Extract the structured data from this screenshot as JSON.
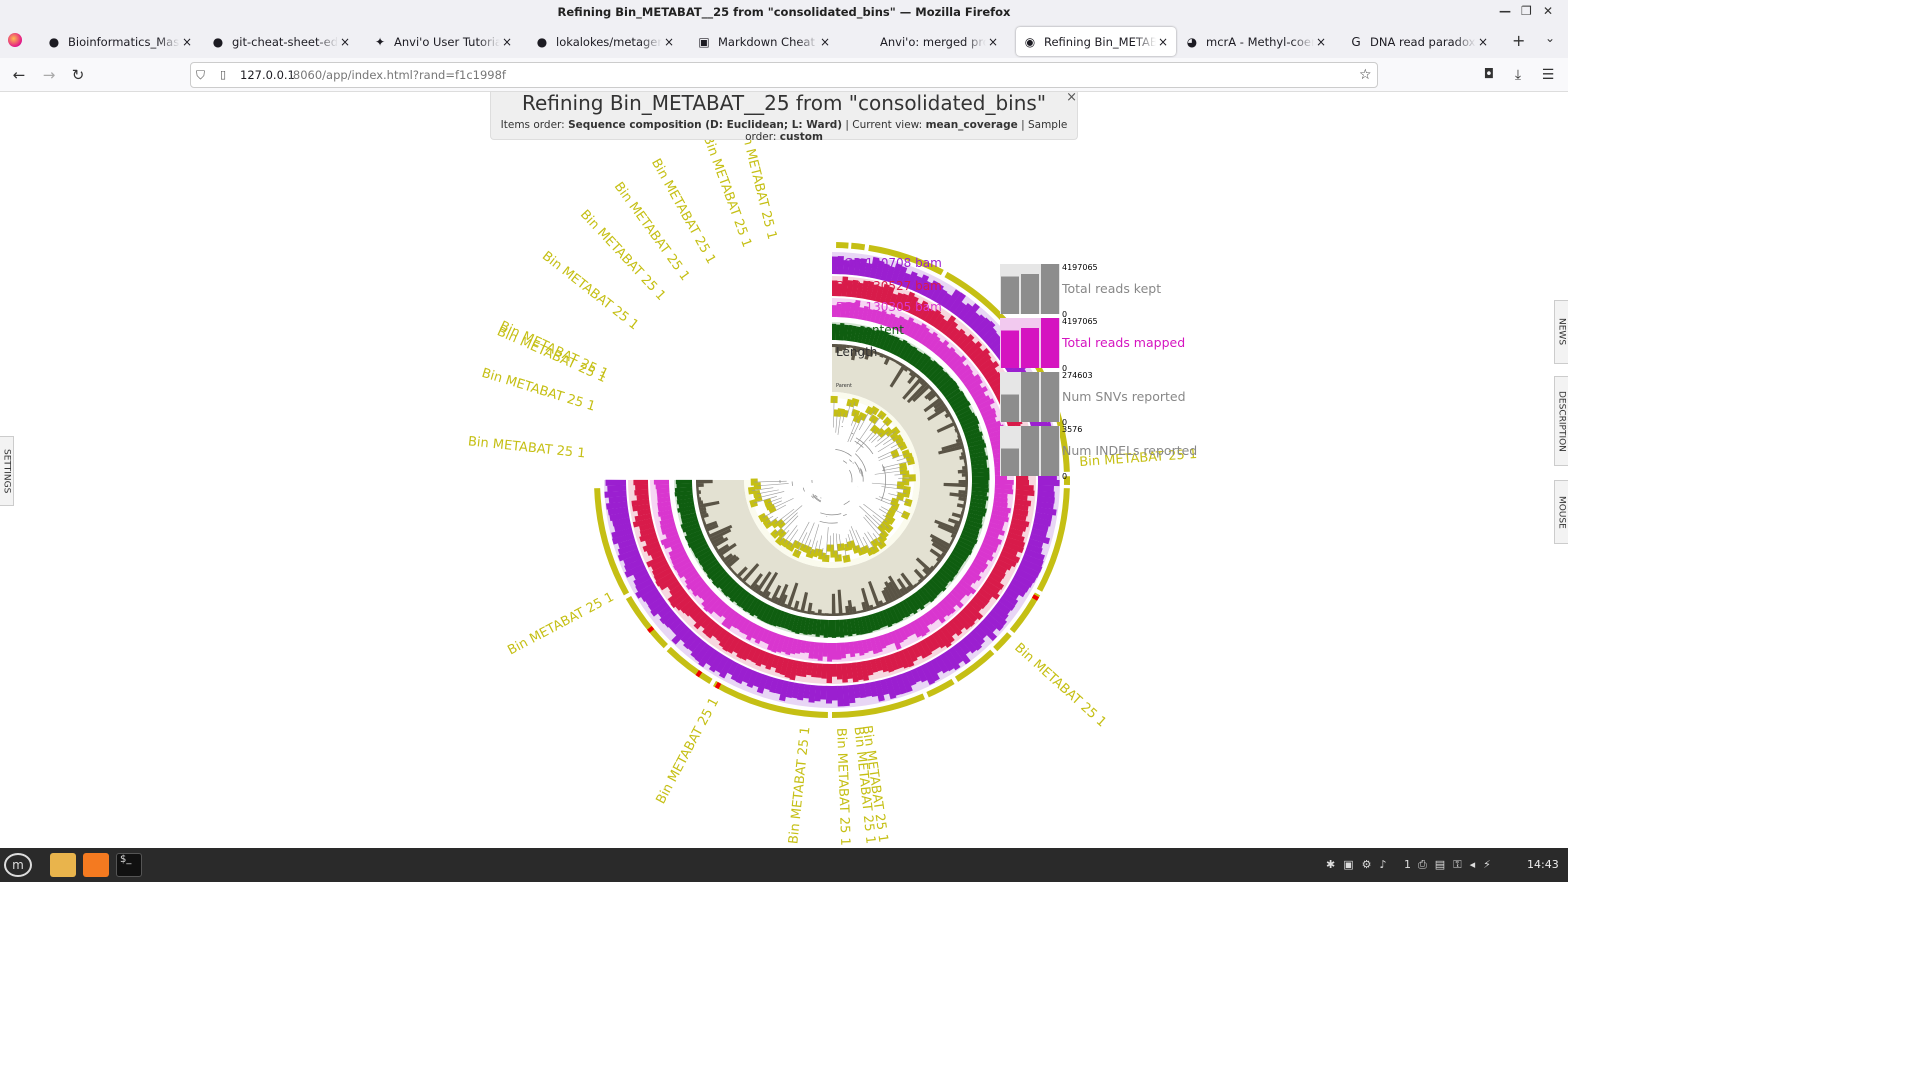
{
  "window": {
    "title": "Refining Bin_METABAT__25 from \"consolidated_bins\" — Mozilla Firefox"
  },
  "tabs": [
    {
      "label": "Bioinformatics_Master_",
      "icon": "github-icon"
    },
    {
      "label": "git-cheat-sheet-educati",
      "icon": "github-icon"
    },
    {
      "label": "Anvi'o User Tutorial for",
      "icon": "anvio-icon"
    },
    {
      "label": "lokalokes/metagenomic",
      "icon": "github-icon"
    },
    {
      "label": "Markdown Cheat Sheet",
      "icon": "markdown-icon"
    },
    {
      "label": "Anvi'o: merged profiles",
      "icon": "none"
    },
    {
      "label": "Refining Bin_METABAT",
      "icon": "anvio-globe-icon"
    },
    {
      "label": "mcrA - Methyl-coenzym",
      "icon": "uniprot-icon"
    },
    {
      "label": "DNA read paradox - Goo",
      "icon": "google-icon"
    }
  ],
  "nav": {
    "url_host": "127.0.0.1",
    "url_rest": ":8060/app/index.html?rand=f1c1998f"
  },
  "panel": {
    "title": "Refining Bin_METABAT__25 from \"consolidated_bins\"",
    "items_order_label": "Items order:",
    "items_order_value": "Sequence composition (D: Euclidean; L: Ward)",
    "view_label": "| Current view:",
    "view_value": "mean_coverage",
    "sample_label": "| Sample order:",
    "sample_value": "custom",
    "close": "×"
  },
  "sidetabs": {
    "settings": "SETTINGS",
    "news": "NEWS",
    "description": "DESCRIPTION",
    "mouse": "MOUSE"
  },
  "layers": {
    "bgr1": "BGR 130708 bam",
    "bgr2": "BGR 130527 bam",
    "bgr3": "BGR 130305 bam",
    "gc": "GC-content",
    "length": "Length",
    "parent": "Parent"
  },
  "bin_label": "Bin METABAT 25 1",
  "colors": {
    "bgr1": "#9b1fd0",
    "bgr2": "#d81b4a",
    "bgr3": "#d936cf",
    "gc": "#0f5e10",
    "length": "#5a5446",
    "bin": "#c5bf14",
    "tree": "#c5bf14",
    "mapped": "#d514c0"
  },
  "chart_data": {
    "type": "bar",
    "title": "",
    "series": [
      {
        "name": "Total reads kept",
        "max_label": "4197065",
        "min_label": "0",
        "values": [
          0.75,
          0.8,
          1.0
        ]
      },
      {
        "name": "Total reads mapped",
        "max_label": "4197065",
        "min_label": "0",
        "values": [
          0.75,
          0.8,
          1.0
        ]
      },
      {
        "name": "Num SNVs reported",
        "max_label": "274603",
        "min_label": "0",
        "values": [
          0.55,
          1.0,
          1.0
        ]
      },
      {
        "name": "Num INDELs reported",
        "max_label": "3576",
        "min_label": "0",
        "values": [
          0.55,
          1.0,
          1.0
        ]
      }
    ]
  },
  "taskbar": {
    "clock": "14:43",
    "workspace": "1"
  }
}
